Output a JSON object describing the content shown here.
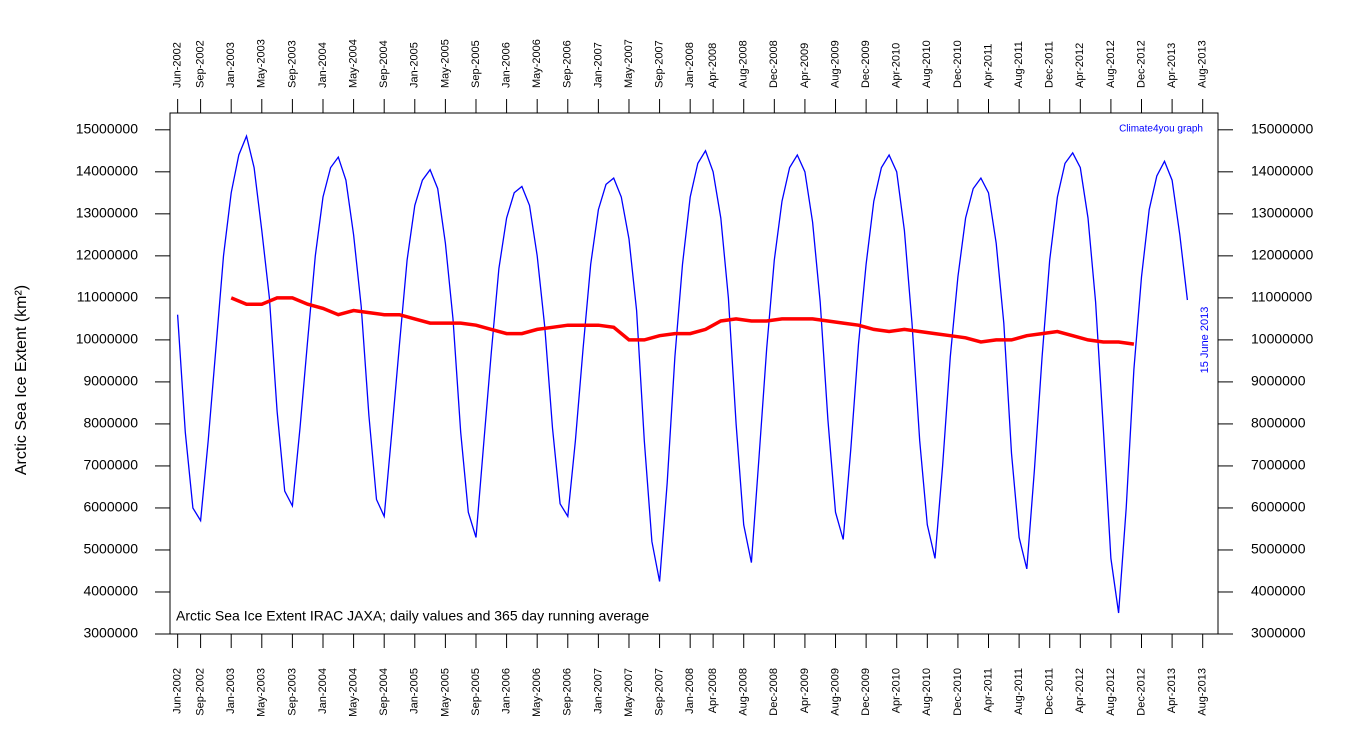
{
  "chart_data": {
    "type": "line",
    "ylabel": "Arctic Sea Ice Extent (km²)",
    "annotation": "Arctic Sea Ice Extent IRAC JAXA; daily values and 365 day running average",
    "credit": "Climate4you graph",
    "end_label": "15 June 2013",
    "xlim": [
      "2002-05",
      "2013-10"
    ],
    "xticks": [
      {
        "value": "2002-06",
        "label": "Jun-2002"
      },
      {
        "value": "2002-09",
        "label": "Sep-2002"
      },
      {
        "value": "2003-01",
        "label": "Jan-2003"
      },
      {
        "value": "2003-05",
        "label": "May-2003"
      },
      {
        "value": "2003-09",
        "label": "Sep-2003"
      },
      {
        "value": "2004-01",
        "label": "Jan-2004"
      },
      {
        "value": "2004-05",
        "label": "May-2004"
      },
      {
        "value": "2004-09",
        "label": "Sep-2004"
      },
      {
        "value": "2005-01",
        "label": "Jan-2005"
      },
      {
        "value": "2005-05",
        "label": "May-2005"
      },
      {
        "value": "2005-09",
        "label": "Sep-2005"
      },
      {
        "value": "2006-01",
        "label": "Jan-2006"
      },
      {
        "value": "2006-05",
        "label": "May-2006"
      },
      {
        "value": "2006-09",
        "label": "Sep-2006"
      },
      {
        "value": "2007-01",
        "label": "Jan-2007"
      },
      {
        "value": "2007-05",
        "label": "May-2007"
      },
      {
        "value": "2007-09",
        "label": "Sep-2007"
      },
      {
        "value": "2008-01",
        "label": "Jan-2008"
      },
      {
        "value": "2008-04",
        "label": "Apr-2008"
      },
      {
        "value": "2008-08",
        "label": "Aug-2008"
      },
      {
        "value": "2008-12",
        "label": "Dec-2008"
      },
      {
        "value": "2009-04",
        "label": "Apr-2009"
      },
      {
        "value": "2009-08",
        "label": "Aug-2009"
      },
      {
        "value": "2009-12",
        "label": "Dec-2009"
      },
      {
        "value": "2010-04",
        "label": "Apr-2010"
      },
      {
        "value": "2010-08",
        "label": "Aug-2010"
      },
      {
        "value": "2010-12",
        "label": "Dec-2010"
      },
      {
        "value": "2011-04",
        "label": "Apr-2011"
      },
      {
        "value": "2011-08",
        "label": "Aug-2011"
      },
      {
        "value": "2011-12",
        "label": "Dec-2011"
      },
      {
        "value": "2012-04",
        "label": "Apr-2012"
      },
      {
        "value": "2012-08",
        "label": "Aug-2012"
      },
      {
        "value": "2012-12",
        "label": "Dec-2012"
      },
      {
        "value": "2013-04",
        "label": "Apr-2013"
      },
      {
        "value": "2013-08",
        "label": "Aug-2013"
      }
    ],
    "ylim": [
      3000000,
      15400000
    ],
    "yticks": [
      3000000,
      4000000,
      5000000,
      6000000,
      7000000,
      8000000,
      9000000,
      10000000,
      11000000,
      12000000,
      13000000,
      14000000,
      15000000
    ],
    "series": [
      {
        "color": "#0000ff",
        "x": [
          "2002-06",
          "2002-07",
          "2002-08",
          "2002-09",
          "2002-10",
          "2002-11",
          "2002-12",
          "2003-01",
          "2003-02",
          "2003-03",
          "2003-04",
          "2003-05",
          "2003-06",
          "2003-07",
          "2003-08",
          "2003-09",
          "2003-10",
          "2003-11",
          "2003-12",
          "2004-01",
          "2004-02",
          "2004-03",
          "2004-04",
          "2004-05",
          "2004-06",
          "2004-07",
          "2004-08",
          "2004-09",
          "2004-10",
          "2004-11",
          "2004-12",
          "2005-01",
          "2005-02",
          "2005-03",
          "2005-04",
          "2005-05",
          "2005-06",
          "2005-07",
          "2005-08",
          "2005-09",
          "2005-10",
          "2005-11",
          "2005-12",
          "2006-01",
          "2006-02",
          "2006-03",
          "2006-04",
          "2006-05",
          "2006-06",
          "2006-07",
          "2006-08",
          "2006-09",
          "2006-10",
          "2006-11",
          "2006-12",
          "2007-01",
          "2007-02",
          "2007-03",
          "2007-04",
          "2007-05",
          "2007-06",
          "2007-07",
          "2007-08",
          "2007-09",
          "2007-10",
          "2007-11",
          "2007-12",
          "2008-01",
          "2008-02",
          "2008-03",
          "2008-04",
          "2008-05",
          "2008-06",
          "2008-07",
          "2008-08",
          "2008-09",
          "2008-10",
          "2008-11",
          "2008-12",
          "2009-01",
          "2009-02",
          "2009-03",
          "2009-04",
          "2009-05",
          "2009-06",
          "2009-07",
          "2009-08",
          "2009-09",
          "2009-10",
          "2009-11",
          "2009-12",
          "2010-01",
          "2010-02",
          "2010-03",
          "2010-04",
          "2010-05",
          "2010-06",
          "2010-07",
          "2010-08",
          "2010-09",
          "2010-10",
          "2010-11",
          "2010-12",
          "2011-01",
          "2011-02",
          "2011-03",
          "2011-04",
          "2011-05",
          "2011-06",
          "2011-07",
          "2011-08",
          "2011-09",
          "2011-10",
          "2011-11",
          "2011-12",
          "2012-01",
          "2012-02",
          "2012-03",
          "2012-04",
          "2012-05",
          "2012-06",
          "2012-07",
          "2012-08",
          "2012-09",
          "2012-10",
          "2012-11",
          "2012-12",
          "2013-01",
          "2013-02",
          "2013-03",
          "2013-04",
          "2013-05",
          "2013-06"
        ],
        "values": [
          10600000,
          7800000,
          6000000,
          5700000,
          7600000,
          9800000,
          12000000,
          13500000,
          14400000,
          14850000,
          14100000,
          12600000,
          11000000,
          8300000,
          6400000,
          6050000,
          7900000,
          10000000,
          12000000,
          13400000,
          14100000,
          14350000,
          13800000,
          12500000,
          10800000,
          8200000,
          6200000,
          5800000,
          7800000,
          9900000,
          11900000,
          13200000,
          13800000,
          14050000,
          13600000,
          12300000,
          10500000,
          7800000,
          5900000,
          5300000,
          7500000,
          9700000,
          11700000,
          12900000,
          13500000,
          13650000,
          13200000,
          12000000,
          10300000,
          7900000,
          6100000,
          5800000,
          7600000,
          9800000,
          11800000,
          13100000,
          13700000,
          13850000,
          13400000,
          12400000,
          10700000,
          7600000,
          5200000,
          4250000,
          6600000,
          9600000,
          11800000,
          13400000,
          14200000,
          14500000,
          14000000,
          12900000,
          11000000,
          8000000,
          5600000,
          4700000,
          7200000,
          9800000,
          11900000,
          13300000,
          14100000,
          14400000,
          14000000,
          12800000,
          10900000,
          8100000,
          5900000,
          5250000,
          7400000,
          9900000,
          11800000,
          13300000,
          14100000,
          14400000,
          14000000,
          12600000,
          10400000,
          7600000,
          5600000,
          4800000,
          7000000,
          9600000,
          11500000,
          12900000,
          13600000,
          13850000,
          13500000,
          12300000,
          10400000,
          7300000,
          5300000,
          4550000,
          6900000,
          9600000,
          11900000,
          13400000,
          14200000,
          14450000,
          14100000,
          12900000,
          10900000,
          7900000,
          4800000,
          3500000,
          6000000,
          9300000,
          11500000,
          13100000,
          13900000,
          14250000,
          13800000,
          12500000,
          10950000
        ]
      },
      {
        "color": "#ff0000",
        "x": [
          "2003-01",
          "2003-03",
          "2003-05",
          "2003-07",
          "2003-09",
          "2003-11",
          "2004-01",
          "2004-03",
          "2004-05",
          "2004-07",
          "2004-09",
          "2004-11",
          "2005-01",
          "2005-03",
          "2005-05",
          "2005-07",
          "2005-09",
          "2005-11",
          "2006-01",
          "2006-03",
          "2006-05",
          "2006-07",
          "2006-09",
          "2006-11",
          "2007-01",
          "2007-03",
          "2007-05",
          "2007-07",
          "2007-09",
          "2007-11",
          "2008-01",
          "2008-03",
          "2008-05",
          "2008-07",
          "2008-09",
          "2008-11",
          "2009-01",
          "2009-03",
          "2009-05",
          "2009-07",
          "2009-09",
          "2009-11",
          "2010-01",
          "2010-03",
          "2010-05",
          "2010-07",
          "2010-09",
          "2010-11",
          "2011-01",
          "2011-03",
          "2011-05",
          "2011-07",
          "2011-09",
          "2011-11",
          "2012-01",
          "2012-03",
          "2012-05",
          "2012-07",
          "2012-09",
          "2012-11"
        ],
        "values": [
          11000000,
          10850000,
          10850000,
          11000000,
          11000000,
          10850000,
          10750000,
          10600000,
          10700000,
          10650000,
          10600000,
          10600000,
          10500000,
          10400000,
          10400000,
          10400000,
          10350000,
          10250000,
          10150000,
          10150000,
          10250000,
          10300000,
          10350000,
          10350000,
          10350000,
          10300000,
          10000000,
          10000000,
          10100000,
          10150000,
          10150000,
          10250000,
          10450000,
          10500000,
          10450000,
          10450000,
          10500000,
          10500000,
          10500000,
          10450000,
          10400000,
          10350000,
          10250000,
          10200000,
          10250000,
          10200000,
          10150000,
          10100000,
          10050000,
          9950000,
          10000000,
          10000000,
          10100000,
          10150000,
          10200000,
          10100000,
          10000000,
          9950000,
          9950000,
          9900000
        ]
      }
    ]
  }
}
